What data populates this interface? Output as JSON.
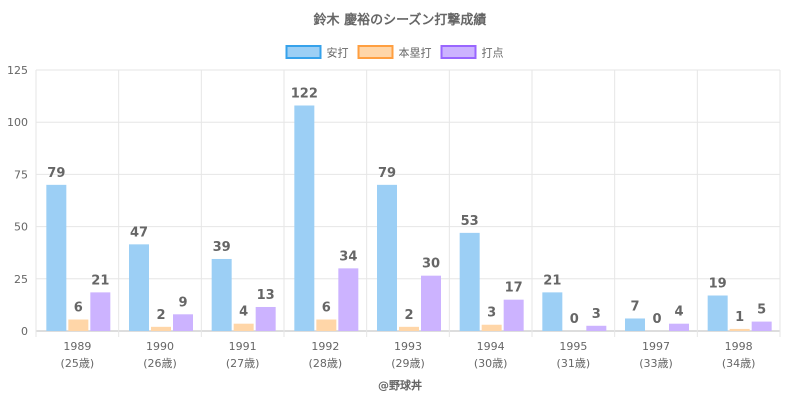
{
  "chart_data": {
    "type": "bar",
    "title": "鈴木 慶裕のシーズン打撃成績",
    "categories": [
      "1989",
      "1990",
      "1991",
      "1992",
      "1993",
      "1994",
      "1995",
      "1997",
      "1998"
    ],
    "category_sublabels": [
      "(25歳)",
      "(26歳)",
      "(27歳)",
      "(28歳)",
      "(29歳)",
      "(30歳)",
      "(31歳)",
      "(33歳)",
      "(34歳)"
    ],
    "series": [
      {
        "name": "安打",
        "values": [
          79,
          47,
          39,
          122,
          79,
          53,
          21,
          7,
          19
        ],
        "bar_values": [
          70,
          41.5,
          34.5,
          108,
          70,
          47,
          18.5,
          6,
          17
        ],
        "color": "#9ccff5",
        "border": "#36a2eb"
      },
      {
        "name": "本塁打",
        "values": [
          6,
          2,
          4,
          6,
          2,
          3,
          0,
          0,
          1
        ],
        "bar_values": [
          5.5,
          2,
          3.5,
          5.5,
          2,
          3,
          0,
          0,
          1
        ],
        "color": "#ffd6a8",
        "border": "#ff9f40"
      },
      {
        "name": "打点",
        "values": [
          21,
          9,
          13,
          34,
          30,
          17,
          3,
          4,
          5
        ],
        "bar_values": [
          18.5,
          8,
          11.5,
          30,
          26.5,
          15,
          2.5,
          3.5,
          4.5
        ],
        "color": "#ccb3ff",
        "border": "#9966ff"
      }
    ],
    "ylim": [
      0,
      125
    ],
    "yticks": [
      0,
      25,
      50,
      75,
      100,
      125
    ],
    "grid": true,
    "legend_position": "top"
  },
  "footer": "@野球丼"
}
